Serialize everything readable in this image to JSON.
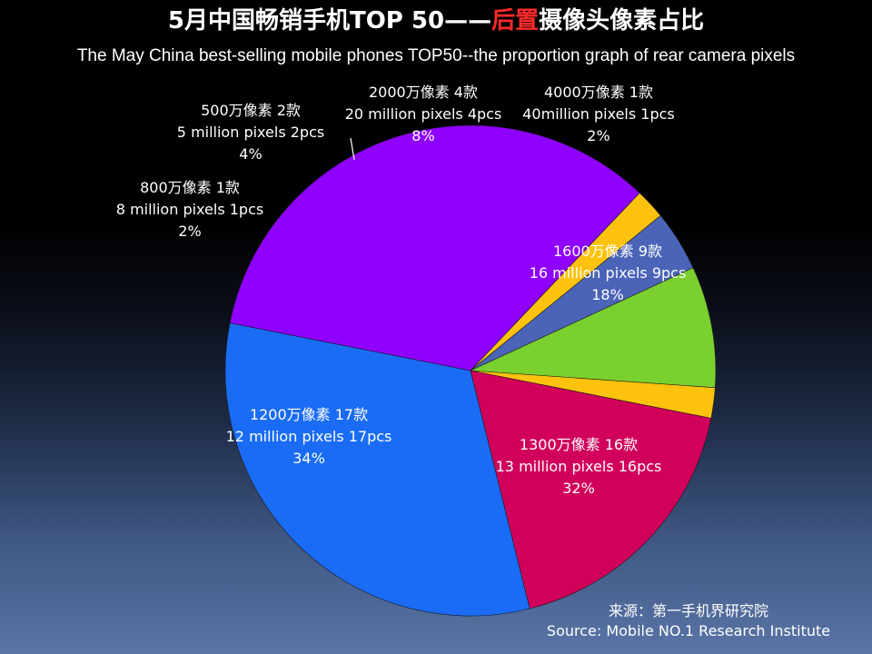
{
  "title": {
    "prefix": "5月中国畅销手机TOP 50——",
    "highlight": "后置",
    "suffix": "摄像头像素占比"
  },
  "subtitle": "The May China best-selling mobile phones TOP50--the proportion graph of rear camera pixels",
  "source": {
    "line1": "来源：第一手机界研究院",
    "line2": "Source: Mobile NO.1 Research Institute"
  },
  "chart_data": {
    "type": "pie",
    "title": "5月中国畅销手机TOP 50——后置摄像头像素占比",
    "subtitle": "The May China best-selling mobile phones TOP50--the proportion graph of rear camera pixels",
    "start_angle_deg": 76,
    "direction": "clockwise",
    "slices": [
      {
        "value": 16,
        "color": "#1a6cf5",
        "zh": "1300万像素 16款",
        "en": "13 million pixels 16pcs",
        "pct": "32%"
      },
      {
        "value": 17,
        "color": "#8f00ff",
        "zh": "1200万像素 17款",
        "en": "12 million pixels 17pcs",
        "pct": "34%"
      },
      {
        "value": 1,
        "color": "#fcc20d",
        "zh": "800万像素 1款",
        "en": "8 million pixels 1pcs",
        "pct": "2%"
      },
      {
        "value": 2,
        "color": "#4b64b8",
        "zh": "500万像素 2款",
        "en": "5 million pixels 2pcs",
        "pct": "4%"
      },
      {
        "value": 4,
        "color": "#7ad02e",
        "zh": "2000万像素 4款",
        "en": "20 million pixels 4pcs",
        "pct": "8%"
      },
      {
        "value": 1,
        "color": "#fcc20d",
        "zh": "4000万像素 1款",
        "en": "40million pixels 1pcs",
        "pct": "2%"
      },
      {
        "value": 9,
        "color": "#d1005a",
        "zh": "1600万像素 9款",
        "en": "16 million pixels 9pcs",
        "pct": "18%"
      }
    ]
  }
}
